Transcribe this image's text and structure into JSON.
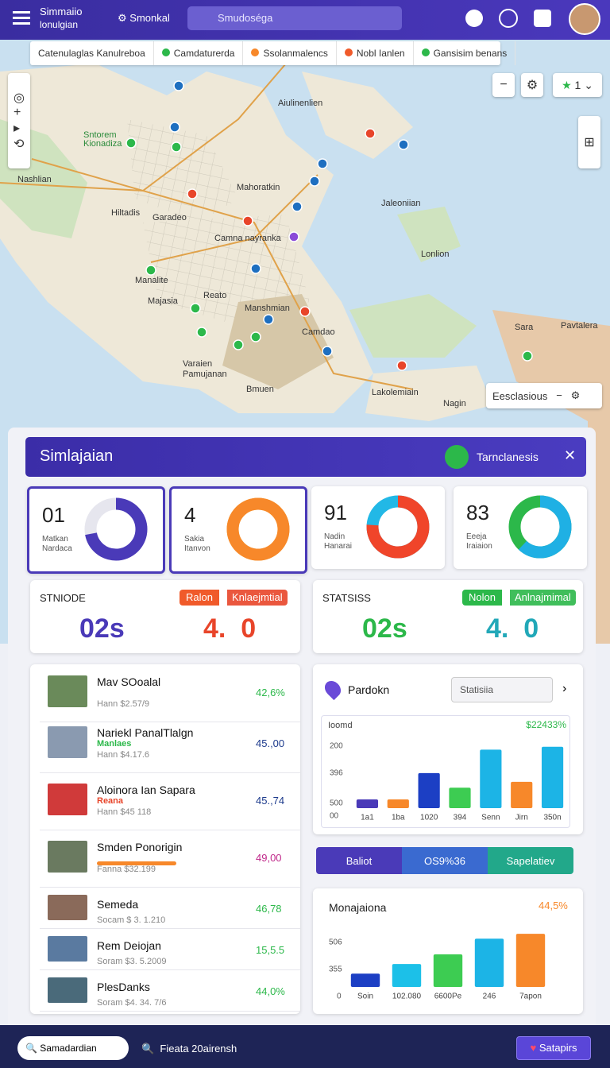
{
  "header": {
    "title": "Simmaiio",
    "subtitle": "lonulgian",
    "settings": "Smonkal",
    "search": "Smudoséga"
  },
  "tabs": [
    "Catenulaglas Kanulreboa",
    "Camdaturerda",
    "Ssolanmalencs",
    "Nobl Ianlen",
    "Gansisim benans"
  ],
  "map": {
    "labels": [
      "Aiulinenlien",
      "Sntorem",
      "Kionadiza",
      "Nashlian",
      "Mahoratkin",
      "Jaleoniian",
      "Hiltadis",
      "Garadeo",
      "Camna nayranka",
      "Lonlion",
      "Manalite",
      "Majasia",
      "Reato",
      "Manshmian",
      "Camdao",
      "Sara",
      "Pavtalera",
      "Varaien",
      "Pamujanan",
      "Bmuen",
      "Lakolemiain",
      "Nagin"
    ],
    "zoom": "1",
    "search": "Eesclasious"
  },
  "panel": {
    "title": "Simlajaian",
    "action": "Tarnclanesis"
  },
  "donut_cards": [
    {
      "value": "01",
      "line1": "Matkan",
      "line2": "Nardaca",
      "percent": 72,
      "color": "#4a3ab8",
      "rest": "#e6e6ee"
    },
    {
      "value": "4",
      "line1": "Sakia",
      "line2": "Itanvon",
      "percent": 100,
      "color": "#f7882a",
      "rest": "#fbc23a"
    },
    {
      "value": "91",
      "line1": "Nadin",
      "line2": "Hanarai",
      "percent": 76,
      "color": "#f0452a",
      "rest": "#22b8e6"
    },
    {
      "value": "83",
      "line1": "Eeeja",
      "line2": "Iraiaion",
      "percent": 62,
      "color": "#1fb0e4",
      "rest": "#2cb84a"
    }
  ],
  "stat_cards": [
    {
      "title": "STNIODE",
      "badge_left": "Ralon",
      "badge_right": "Knlaejmtial",
      "left": "02s",
      "right": "4.  0"
    },
    {
      "title": "STATSISS",
      "badge_left": "Nolon",
      "badge_right": "Anlnajmimal",
      "left": "02s",
      "right": "4.  0"
    }
  ],
  "list": [
    {
      "name": "Mav SOoalal",
      "sub": "Hann $2.57/9",
      "value": "42,6%"
    },
    {
      "name": "Nariekl PanalTlalgn",
      "tag": "Manlaes",
      "sub": "Hann $4.17.6",
      "value": "45.,00"
    },
    {
      "name": "Aloinora Ian Sapara",
      "tag": "Reana",
      "sub": "Hann $45 118",
      "value": "45.,74"
    },
    {
      "name": "Smden Ponorigin",
      "sub": "Fanna $32.199",
      "value": "49,00"
    },
    {
      "name": "Semeda",
      "sub": "Socam $ 3. 1.210",
      "value": "46,78"
    },
    {
      "name": "Rem Deiojan",
      "sub": "Soram $3. 5.2009",
      "value": "15,5.5"
    },
    {
      "name": "PlesDanks",
      "sub": "Soram $4. 34. 7/6",
      "value": "44,0%"
    }
  ],
  "chart1": {
    "place": "Pardokn",
    "search": "Statisiia",
    "label": "Ioomd",
    "total": "$22433%",
    "y_labels": [
      "200",
      "396",
      "500",
      "00"
    ],
    "categories": [
      "1a1",
      "1ba",
      "1020",
      "394",
      "Senn",
      "Jirn",
      "350n"
    ],
    "values": [
      12,
      12,
      48,
      28,
      80,
      36,
      84
    ],
    "colors": [
      "#4a3ab8",
      "#f7882a",
      "#1c3fc4",
      "#3dcc52",
      "#1cb4e6",
      "#f7882a",
      "#1cb4e6"
    ],
    "ylim": [
      0,
      100
    ]
  },
  "segments": [
    "Baliot",
    "OS9%36",
    "Sapelatiev"
  ],
  "chart2": {
    "title": "Monajaiona",
    "total": "44,5%",
    "y_labels": [
      "506",
      "355",
      "0"
    ],
    "categories": [
      "Soin",
      "102.080",
      "6600Pe",
      "246",
      "7apon"
    ],
    "values": [
      22,
      38,
      54,
      80,
      88
    ],
    "colors": [
      "#1c3fc4",
      "#1cc0e8",
      "#3dcc52",
      "#1cb4e6",
      "#f7882a"
    ],
    "ylim": [
      0,
      100
    ]
  },
  "footer": {
    "search": "Samadardian",
    "query": "Fieata 20airensh",
    "button": "Satapirs"
  }
}
